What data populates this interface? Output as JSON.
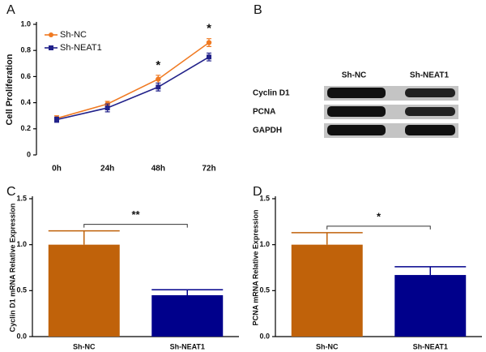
{
  "chart_data": [
    {
      "type": "line",
      "panel": "A",
      "ylabel": "Cell Proliferation",
      "categories": [
        "0h",
        "24h",
        "48h",
        "72h"
      ],
      "series": [
        {
          "name": "Sh-NC",
          "color": "#f07a22",
          "marker": "circle",
          "values": [
            0.28,
            0.39,
            0.58,
            0.86
          ],
          "errors": [
            0.02,
            0.02,
            0.03,
            0.03
          ]
        },
        {
          "name": "Sh-NEAT1",
          "color": "#22228a",
          "marker": "square",
          "values": [
            0.27,
            0.36,
            0.52,
            0.75
          ],
          "errors": [
            0.02,
            0.03,
            0.03,
            0.03
          ]
        }
      ],
      "annotations": [
        {
          "text": "*",
          "x": "48h"
        },
        {
          "text": "*",
          "x": "72h"
        }
      ],
      "ylim": [
        0,
        1
      ],
      "yticks": [
        0,
        0.2,
        0.4,
        0.6,
        0.8,
        {
          "value": 1,
          "label": "1.0"
        }
      ],
      "legend": "upper left"
    },
    {
      "type": "bar",
      "panel": "C",
      "ylabel": "Cyclin D1 mRNA Relative Expression",
      "categories": [
        "Sh-NC",
        "Sh-NEAT1"
      ],
      "values": [
        1.0,
        0.45
      ],
      "errors": [
        0.15,
        0.06
      ],
      "colors": [
        "#c0620a",
        "#00008b"
      ],
      "significance": "**",
      "ylim": [
        0,
        1.5
      ],
      "yticks": [
        {
          "value": 0,
          "label": "0.0"
        },
        0.5,
        {
          "value": 1,
          "label": "1.0"
        },
        1.5
      ]
    },
    {
      "type": "bar",
      "panel": "D",
      "ylabel": "PCNA mRNA Relative Expression",
      "categories": [
        "Sh-NC",
        "Sh-NEAT1"
      ],
      "values": [
        1.0,
        0.67
      ],
      "errors": [
        0.13,
        0.09
      ],
      "colors": [
        "#c0620a",
        "#00008b"
      ],
      "significance": "*",
      "ylim": [
        0,
        1.5
      ],
      "yticks": [
        {
          "value": 0,
          "label": "0.0"
        },
        0.5,
        {
          "value": 1,
          "label": "1.0"
        },
        1.5
      ]
    }
  ],
  "blot": {
    "panel": "B",
    "columns": [
      "Sh-NC",
      "Sh-NEAT1"
    ],
    "rows": [
      "Cyclin D1",
      "PCNA",
      "GAPDH"
    ]
  }
}
